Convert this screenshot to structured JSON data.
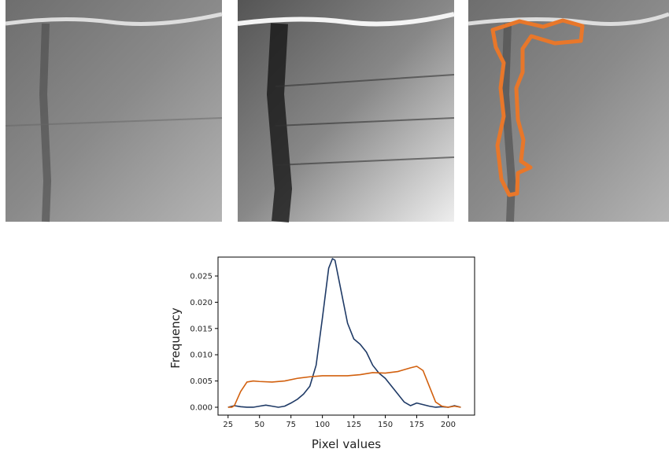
{
  "chart_data": {
    "type": "line",
    "xlabel": "Pixel values",
    "ylabel": "Frequency",
    "xlim": [
      17,
      221
    ],
    "ylim": [
      -0.0015,
      0.0286
    ],
    "xticks": [
      25,
      50,
      75,
      100,
      125,
      150,
      175,
      200
    ],
    "yticks": [
      {
        "value": 0,
        "label": "0.000"
      },
      0.005,
      {
        "value": 0.01,
        "label": "0.010"
      },
      0.015,
      {
        "value": 0.02,
        "label": "0.020"
      },
      0.025
    ],
    "series": [
      {
        "color": "#1f3a66",
        "x": [
          25,
          30,
          35,
          40,
          45,
          50,
          55,
          60,
          65,
          70,
          75,
          80,
          85,
          90,
          95,
          100,
          105,
          108,
          110,
          115,
          120,
          125,
          130,
          135,
          140,
          145,
          150,
          155,
          160,
          165,
          170,
          175,
          180,
          185,
          190,
          195,
          200,
          205,
          210
        ],
        "values": [
          0,
          0.0003,
          0.0001,
          0,
          0,
          0.0002,
          0.0004,
          0.0002,
          0,
          0.0002,
          0.0008,
          0.0015,
          0.0025,
          0.004,
          0.008,
          0.017,
          0.0265,
          0.0283,
          0.028,
          0.022,
          0.016,
          0.013,
          0.012,
          0.0105,
          0.008,
          0.0065,
          0.0055,
          0.004,
          0.0025,
          0.001,
          0.0003,
          0.0008,
          0.0005,
          0.0002,
          0,
          0.0001,
          0,
          0.0003,
          0
        ]
      },
      {
        "color": "#d2600e",
        "x": [
          25,
          28,
          30,
          35,
          40,
          45,
          50,
          60,
          70,
          80,
          90,
          100,
          110,
          120,
          130,
          140,
          150,
          160,
          170,
          175,
          180,
          185,
          190,
          195,
          200,
          205,
          210
        ],
        "values": [
          0,
          0,
          0.0003,
          0.003,
          0.0048,
          0.005,
          0.0049,
          0.0048,
          0.005,
          0.0055,
          0.0058,
          0.006,
          0.006,
          0.006,
          0.0062,
          0.0066,
          0.0065,
          0.0068,
          0.0075,
          0.0078,
          0.007,
          0.004,
          0.001,
          0.0002,
          0,
          0.0002,
          0
        ]
      }
    ]
  }
}
